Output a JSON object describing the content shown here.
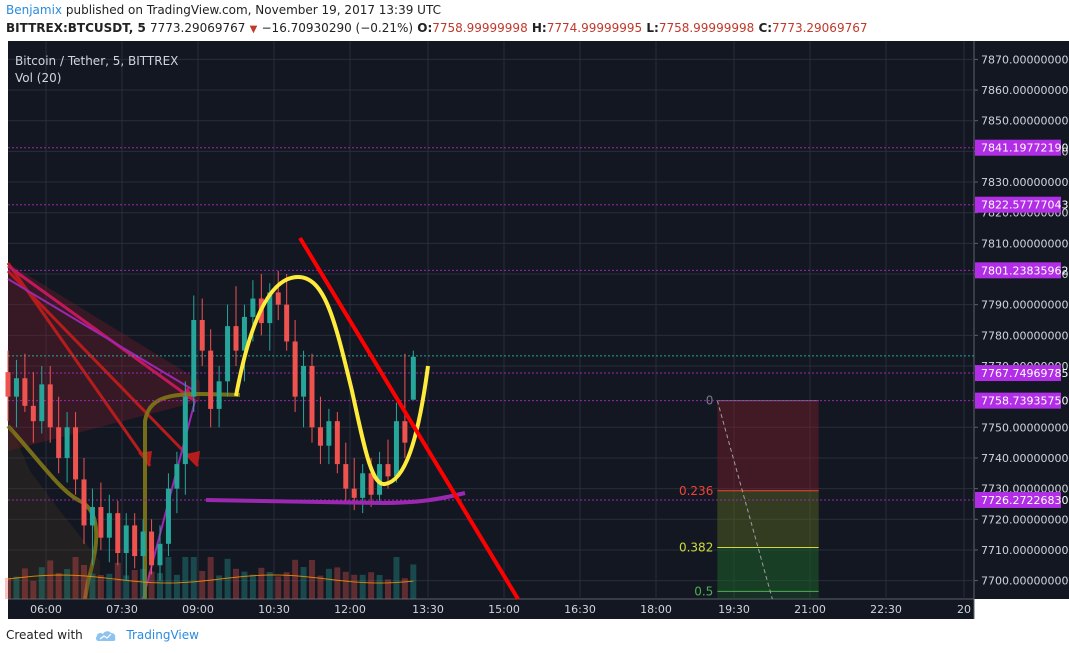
{
  "header": {
    "author": "Benjamix",
    "published": "published on TradingView.com, November 19, 2017 13:39 UTC",
    "symbol": "BITTREX:BTCUSDT, 5",
    "last": "7773.29069767",
    "change": "−16.70930290 (−0.21%)",
    "o_label": "O:",
    "o_val": "7758.99999998",
    "h_label": "H:",
    "h_val": "7774.99999995",
    "l_label": "L:",
    "l_val": "7758.99999998",
    "c_label": "C:",
    "c_val": "7773.29069767"
  },
  "legend": {
    "title": "Bitcoin / Tether, 5, BITTREX",
    "volume": "Vol (20)"
  },
  "footer": {
    "created_with": "Created with",
    "brand": "TradingView"
  },
  "chart_data": {
    "type": "candlestick",
    "x_range": [
      "05:30",
      "20:00"
    ],
    "y_range": [
      7694,
      7876
    ],
    "x_ticks": [
      "06:00",
      "07:30",
      "09:00",
      "10:30",
      "12:00",
      "13:30",
      "15:00",
      "16:30",
      "18:00",
      "19:30",
      "21:00",
      "22:30",
      "20"
    ],
    "y_ticks": [
      "7870.00000000",
      "7860.00000000",
      "7850.00000000",
      "7840.00000000",
      "7830.00000000",
      "7820.00000000",
      "7810.00000000",
      "7800.00000000",
      "7790.00000000",
      "7780.00000000",
      "7770.00000000",
      "7750.00000000",
      "7740.00000000",
      "7730.00000000",
      "7720.00000000",
      "7710.00000000",
      "7700.00000000"
    ],
    "y_tick_values": [
      7870,
      7860,
      7850,
      7840,
      7830,
      7820,
      7810,
      7800,
      7790,
      7780,
      7770,
      7750,
      7740,
      7730,
      7720,
      7710,
      7700
    ],
    "price_levels": [
      {
        "label": "7841.19772190",
        "value": 7841.2
      },
      {
        "label": "7822.57777043",
        "value": 7822.6
      },
      {
        "label": "7801.23835962",
        "value": 7801.2
      },
      {
        "label": "7767.74969785",
        "value": 7767.7
      },
      {
        "label": "7758.73935750",
        "value": 7758.7
      },
      {
        "label": "7726.27226830",
        "value": 7726.3
      }
    ],
    "fibonacci": [
      {
        "label": "0",
        "value": 7758.7
      },
      {
        "label": "0.236",
        "value": 7729.3
      },
      {
        "label": "0.382",
        "value": 7710.8
      },
      {
        "label": "0.5",
        "value": 7696.5
      }
    ],
    "fib_range": {
      "start": "19:30",
      "end": "21:30"
    },
    "colors": {
      "background": "#131722",
      "up": "#26a69a",
      "down": "#ef5350",
      "level": "#9c27b0",
      "level_label": "#b12ee6",
      "trendline": "#ff0000",
      "pattern": "#ffeb3b",
      "support": "#9c27b0"
    },
    "candles": [
      {
        "t": "05:30",
        "o": 7768,
        "h": 7775,
        "l": 7752,
        "c": 7760
      },
      {
        "t": "05:40",
        "o": 7760,
        "h": 7772,
        "l": 7750,
        "c": 7766
      },
      {
        "t": "05:50",
        "o": 7766,
        "h": 7774,
        "l": 7755,
        "c": 7757
      },
      {
        "t": "06:00",
        "o": 7757,
        "h": 7768,
        "l": 7745,
        "c": 7752
      },
      {
        "t": "06:10",
        "o": 7752,
        "h": 7770,
        "l": 7748,
        "c": 7764
      },
      {
        "t": "06:20",
        "o": 7764,
        "h": 7770,
        "l": 7745,
        "c": 7750
      },
      {
        "t": "06:30",
        "o": 7750,
        "h": 7760,
        "l": 7735,
        "c": 7740
      },
      {
        "t": "06:40",
        "o": 7740,
        "h": 7755,
        "l": 7732,
        "c": 7750
      },
      {
        "t": "06:50",
        "o": 7750,
        "h": 7755,
        "l": 7728,
        "c": 7733
      },
      {
        "t": "07:00",
        "o": 7733,
        "h": 7740,
        "l": 7712,
        "c": 7718
      },
      {
        "t": "07:10",
        "o": 7718,
        "h": 7730,
        "l": 7705,
        "c": 7724
      },
      {
        "t": "07:20",
        "o": 7724,
        "h": 7732,
        "l": 7710,
        "c": 7714
      },
      {
        "t": "07:30",
        "o": 7714,
        "h": 7728,
        "l": 7706,
        "c": 7722
      },
      {
        "t": "07:40",
        "o": 7722,
        "h": 7726,
        "l": 7705,
        "c": 7709
      },
      {
        "t": "07:50",
        "o": 7709,
        "h": 7722,
        "l": 7700,
        "c": 7718
      },
      {
        "t": "08:00",
        "o": 7718,
        "h": 7722,
        "l": 7704,
        "c": 7708
      },
      {
        "t": "08:10",
        "o": 7708,
        "h": 7720,
        "l": 7700,
        "c": 7716
      },
      {
        "t": "08:20",
        "o": 7716,
        "h": 7720,
        "l": 7702,
        "c": 7705
      },
      {
        "t": "08:30",
        "o": 7705,
        "h": 7718,
        "l": 7700,
        "c": 7712
      },
      {
        "t": "08:40",
        "o": 7712,
        "h": 7735,
        "l": 7708,
        "c": 7730
      },
      {
        "t": "08:50",
        "o": 7730,
        "h": 7742,
        "l": 7722,
        "c": 7738
      },
      {
        "t": "09:00",
        "o": 7738,
        "h": 7765,
        "l": 7728,
        "c": 7760
      },
      {
        "t": "09:10",
        "o": 7760,
        "h": 7793,
        "l": 7755,
        "c": 7785
      },
      {
        "t": "09:20",
        "o": 7785,
        "h": 7792,
        "l": 7770,
        "c": 7775
      },
      {
        "t": "09:30",
        "o": 7775,
        "h": 7782,
        "l": 7750,
        "c": 7756
      },
      {
        "t": "09:40",
        "o": 7756,
        "h": 7770,
        "l": 7750,
        "c": 7765
      },
      {
        "t": "09:50",
        "o": 7765,
        "h": 7790,
        "l": 7760,
        "c": 7783
      },
      {
        "t": "10:00",
        "o": 7783,
        "h": 7796,
        "l": 7770,
        "c": 7775
      },
      {
        "t": "10:10",
        "o": 7775,
        "h": 7790,
        "l": 7765,
        "c": 7786
      },
      {
        "t": "10:20",
        "o": 7786,
        "h": 7798,
        "l": 7778,
        "c": 7792
      },
      {
        "t": "10:30",
        "o": 7792,
        "h": 7800,
        "l": 7780,
        "c": 7784
      },
      {
        "t": "10:40",
        "o": 7784,
        "h": 7797,
        "l": 7775,
        "c": 7794
      },
      {
        "t": "10:50",
        "o": 7794,
        "h": 7801,
        "l": 7785,
        "c": 7790
      },
      {
        "t": "11:00",
        "o": 7790,
        "h": 7800,
        "l": 7775,
        "c": 7778
      },
      {
        "t": "11:10",
        "o": 7778,
        "h": 7785,
        "l": 7755,
        "c": 7760
      },
      {
        "t": "11:20",
        "o": 7760,
        "h": 7775,
        "l": 7750,
        "c": 7770
      },
      {
        "t": "11:30",
        "o": 7770,
        "h": 7774,
        "l": 7745,
        "c": 7750
      },
      {
        "t": "11:40",
        "o": 7750,
        "h": 7760,
        "l": 7738,
        "c": 7744
      },
      {
        "t": "11:50",
        "o": 7744,
        "h": 7756,
        "l": 7738,
        "c": 7752
      },
      {
        "t": "12:00",
        "o": 7752,
        "h": 7755,
        "l": 7735,
        "c": 7738
      },
      {
        "t": "12:10",
        "o": 7738,
        "h": 7745,
        "l": 7725,
        "c": 7730
      },
      {
        "t": "12:20",
        "o": 7730,
        "h": 7740,
        "l": 7723,
        "c": 7727
      },
      {
        "t": "12:30",
        "o": 7727,
        "h": 7738,
        "l": 7722,
        "c": 7735
      },
      {
        "t": "12:40",
        "o": 7735,
        "h": 7740,
        "l": 7724,
        "c": 7728
      },
      {
        "t": "12:50",
        "o": 7728,
        "h": 7742,
        "l": 7726,
        "c": 7738
      },
      {
        "t": "13:00",
        "o": 7738,
        "h": 7746,
        "l": 7730,
        "c": 7734
      },
      {
        "t": "13:10",
        "o": 7734,
        "h": 7758,
        "l": 7732,
        "c": 7752
      },
      {
        "t": "13:20",
        "o": 7752,
        "h": 7774,
        "l": 7740,
        "c": 7745
      },
      {
        "t": "13:30",
        "o": 7759,
        "h": 7775,
        "l": 7759,
        "c": 7773
      }
    ]
  }
}
